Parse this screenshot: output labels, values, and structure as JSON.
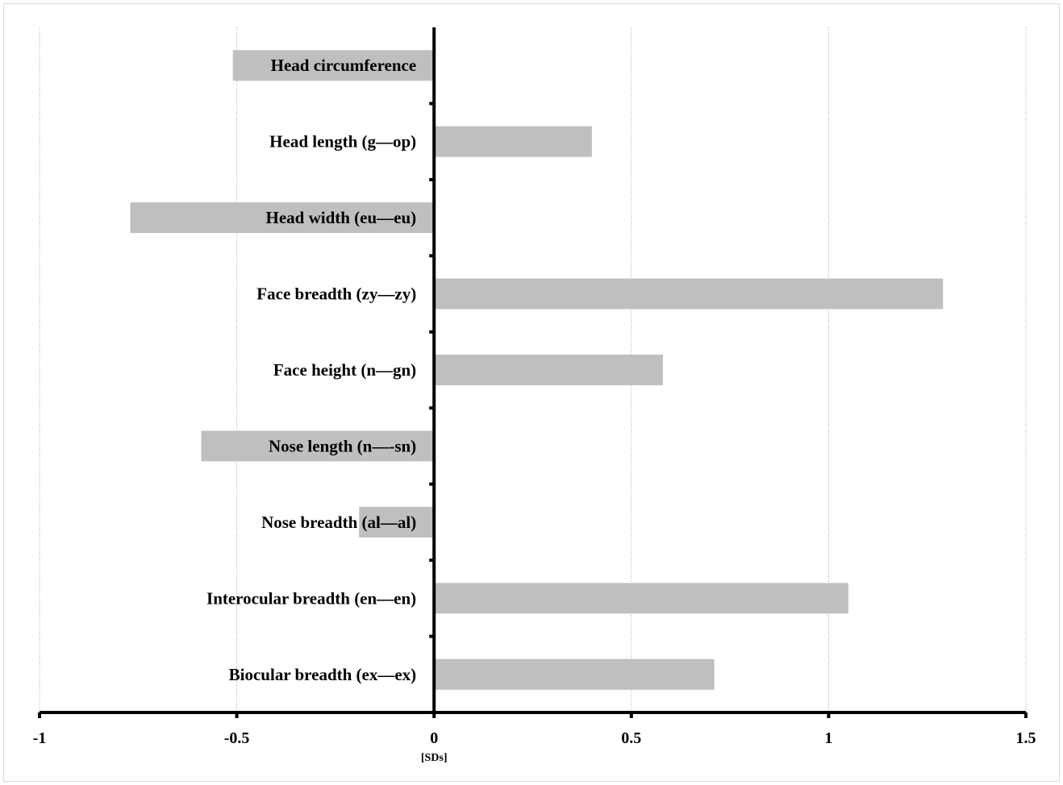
{
  "chart_data": {
    "type": "bar",
    "orientation": "horizontal",
    "categories": [
      "Head circumference",
      "Head length (g—op)",
      "Head width (eu—eu)",
      "Face breadth (zy—zy)",
      "Face height (n—gn)",
      "Nose length (n—-sn)",
      "Nose breadth (al—al)",
      "Interocular breadth (en—en)",
      "Biocular breadth (ex—ex)"
    ],
    "values": [
      -0.51,
      0.4,
      -0.77,
      1.29,
      0.58,
      -0.59,
      -0.19,
      1.05,
      0.71
    ],
    "title": "",
    "xlabel": "[SDs]",
    "ylabel": "",
    "xlim": [
      -1,
      1.5
    ],
    "xticks": [
      -1,
      -0.5,
      0,
      0.5,
      1,
      1.5
    ],
    "xtick_labels": [
      "-1",
      "-0.5",
      "0",
      "0.5",
      "1",
      "1.5"
    ],
    "grid": "vertical dotted",
    "legend": "none",
    "bar_color": "#bfbfbf",
    "axis_color": "#000000"
  }
}
